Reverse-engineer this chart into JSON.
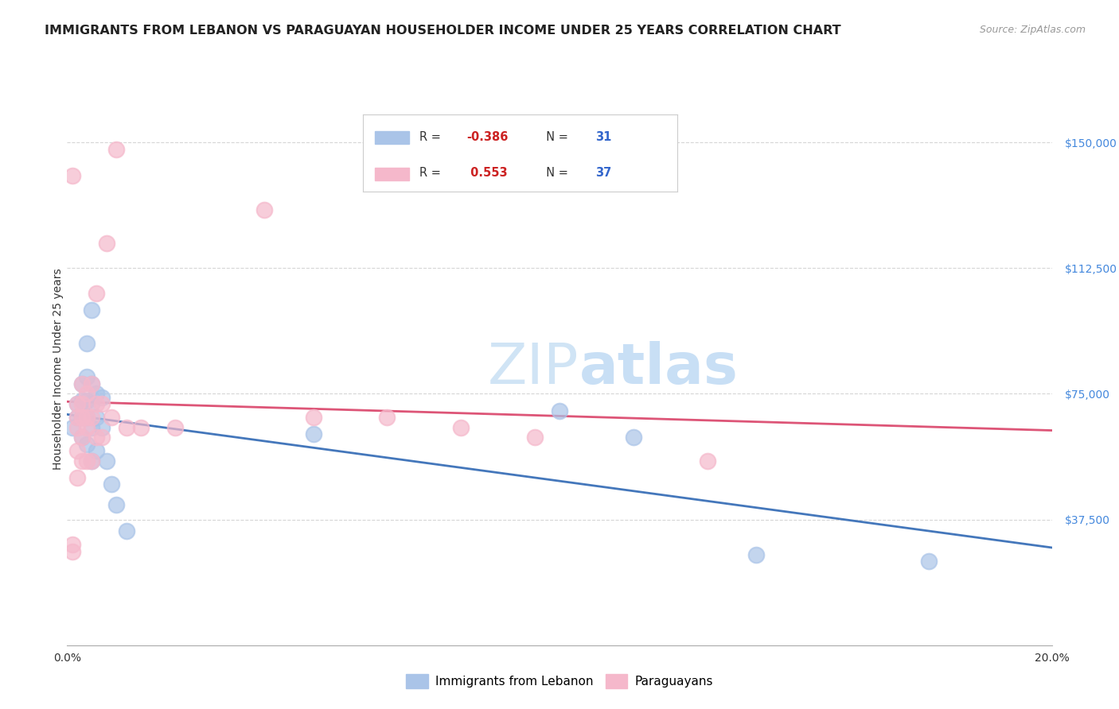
{
  "title": "IMMIGRANTS FROM LEBANON VS PARAGUAYAN HOUSEHOLDER INCOME UNDER 25 YEARS CORRELATION CHART",
  "source": "Source: ZipAtlas.com",
  "ylabel": "Householder Income Under 25 years",
  "xlim": [
    0.0,
    0.2
  ],
  "ylim": [
    0,
    165000
  ],
  "yticks": [
    37500,
    75000,
    112500,
    150000
  ],
  "ytick_labels": [
    "$37,500",
    "$75,000",
    "$112,500",
    "$150,000"
  ],
  "background_color": "#ffffff",
  "watermark_zip": "ZIP",
  "watermark_atlas": "atlas",
  "blue_color": "#aac4e8",
  "pink_color": "#f5b8cb",
  "blue_line_color": "#4477bb",
  "pink_line_color": "#dd5577",
  "legend_R_blue": "-0.386",
  "legend_N_blue": "31",
  "legend_R_pink": "0.553",
  "legend_N_pink": "37",
  "legend_label_blue": "Immigrants from Lebanon",
  "legend_label_pink": "Paraguayans",
  "blue_x": [
    0.001,
    0.002,
    0.002,
    0.003,
    0.003,
    0.003,
    0.003,
    0.004,
    0.004,
    0.004,
    0.004,
    0.004,
    0.005,
    0.005,
    0.005,
    0.005,
    0.005,
    0.006,
    0.006,
    0.006,
    0.007,
    0.007,
    0.008,
    0.009,
    0.01,
    0.012,
    0.05,
    0.1,
    0.115,
    0.14,
    0.175
  ],
  "blue_y": [
    65000,
    72000,
    68000,
    78000,
    73000,
    68000,
    62000,
    90000,
    80000,
    73000,
    68000,
    60000,
    100000,
    78000,
    72000,
    65000,
    55000,
    75000,
    68000,
    58000,
    74000,
    65000,
    55000,
    48000,
    42000,
    34000,
    63000,
    70000,
    62000,
    27000,
    25000
  ],
  "pink_x": [
    0.001,
    0.001,
    0.001,
    0.002,
    0.002,
    0.002,
    0.002,
    0.002,
    0.003,
    0.003,
    0.003,
    0.003,
    0.003,
    0.004,
    0.004,
    0.004,
    0.004,
    0.005,
    0.005,
    0.005,
    0.006,
    0.006,
    0.006,
    0.007,
    0.007,
    0.008,
    0.009,
    0.01,
    0.012,
    0.015,
    0.022,
    0.04,
    0.05,
    0.065,
    0.08,
    0.095,
    0.13
  ],
  "pink_y": [
    30000,
    28000,
    140000,
    68000,
    72000,
    65000,
    58000,
    50000,
    78000,
    72000,
    68000,
    62000,
    55000,
    75000,
    68000,
    65000,
    55000,
    78000,
    68000,
    55000,
    105000,
    72000,
    62000,
    72000,
    62000,
    120000,
    68000,
    148000,
    65000,
    65000,
    65000,
    130000,
    68000,
    68000,
    65000,
    62000,
    55000
  ],
  "title_fontsize": 11.5,
  "source_fontsize": 9,
  "axis_label_fontsize": 10,
  "tick_fontsize": 10,
  "legend_fontsize": 11,
  "watermark_fontsize_zip": 52,
  "watermark_fontsize_atlas": 52,
  "watermark_color": "#d0e4f5",
  "grid_color": "#cccccc",
  "grid_alpha": 0.8
}
